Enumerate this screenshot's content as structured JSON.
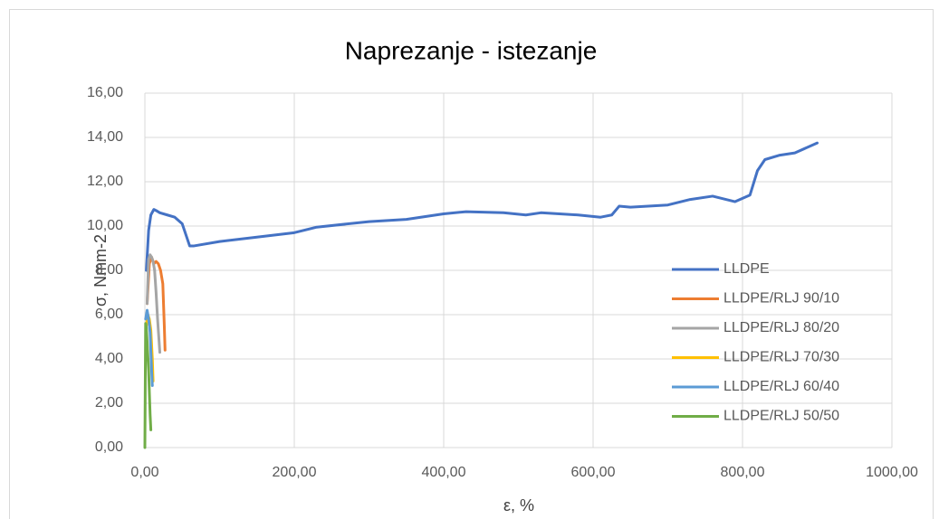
{
  "chart_data": {
    "type": "line",
    "title": "Naprezanje - istezanje",
    "x_label": "ε, %",
    "y_label": "σ, Nmm-2",
    "xlim": [
      0,
      1000
    ],
    "ylim": [
      0,
      16
    ],
    "xticks": [
      {
        "value": 0,
        "label": "0,00"
      },
      {
        "value": 200,
        "label": "200,00"
      },
      {
        "value": 400,
        "label": "400,00"
      },
      {
        "value": 600,
        "label": "600,00"
      },
      {
        "value": 800,
        "label": "800,00"
      },
      {
        "value": 1000,
        "label": "1000,00"
      }
    ],
    "yticks": [
      {
        "value": 0,
        "label": "0,00"
      },
      {
        "value": 2,
        "label": "2,00"
      },
      {
        "value": 4,
        "label": "4,00"
      },
      {
        "value": 6,
        "label": "6,00"
      },
      {
        "value": 8,
        "label": "8,00"
      },
      {
        "value": 10,
        "label": "10,00"
      },
      {
        "value": 12,
        "label": "12,00"
      },
      {
        "value": 14,
        "label": "14,00"
      },
      {
        "value": 16,
        "label": "16,00"
      }
    ],
    "grid": true,
    "legend": "right",
    "series": [
      {
        "name": "LLDPE",
        "color": "#4472c4",
        "x": [
          2,
          5,
          8,
          12,
          15,
          20,
          30,
          40,
          50,
          55,
          60,
          65,
          100,
          150,
          200,
          230,
          300,
          350,
          400,
          430,
          480,
          510,
          530,
          580,
          610,
          625,
          635,
          650,
          700,
          730,
          760,
          790,
          810,
          820,
          830,
          850,
          870,
          900
        ],
        "values": [
          8.0,
          9.8,
          10.5,
          10.75,
          10.7,
          10.6,
          10.5,
          10.4,
          10.1,
          9.6,
          9.1,
          9.1,
          9.3,
          9.5,
          9.7,
          9.95,
          10.2,
          10.3,
          10.55,
          10.65,
          10.6,
          10.5,
          10.6,
          10.5,
          10.4,
          10.5,
          10.9,
          10.85,
          10.95,
          11.2,
          11.35,
          11.1,
          11.4,
          12.5,
          13.0,
          13.2,
          13.3,
          13.75
        ]
      },
      {
        "name": "LLDPE/RLJ 90/10",
        "color": "#ed7d31",
        "x": [
          3,
          6,
          9,
          12,
          15,
          18,
          21,
          24,
          26,
          27
        ],
        "values": [
          6.5,
          8.3,
          8.6,
          8.3,
          8.4,
          8.3,
          8.0,
          7.4,
          5.5,
          4.4
        ]
      },
      {
        "name": "LLDPE/RLJ 80/20",
        "color": "#a5a5a5",
        "x": [
          3,
          5,
          7,
          9,
          11,
          13,
          15,
          17,
          19,
          20
        ],
        "values": [
          6.5,
          8.5,
          8.7,
          8.6,
          8.4,
          8.0,
          7.0,
          5.8,
          4.8,
          4.3
        ]
      },
      {
        "name": "LLDPE/RLJ 70/30",
        "color": "#ffc000",
        "x": [
          2,
          4,
          6,
          8,
          10,
          11
        ],
        "values": [
          5.5,
          6.0,
          5.8,
          5.3,
          4.0,
          3.0
        ]
      },
      {
        "name": "LLDPE/RLJ 60/40",
        "color": "#5b9bd5",
        "x": [
          1,
          3,
          5,
          7,
          9,
          10
        ],
        "values": [
          5.8,
          6.2,
          5.8,
          5.2,
          3.5,
          2.8
        ]
      },
      {
        "name": "LLDPE/RLJ 50/50",
        "color": "#70ad47",
        "x": [
          0,
          1,
          2,
          3,
          5,
          7,
          8
        ],
        "values": [
          0,
          5.6,
          5.4,
          4.8,
          3.5,
          1.5,
          0.8
        ]
      }
    ]
  }
}
